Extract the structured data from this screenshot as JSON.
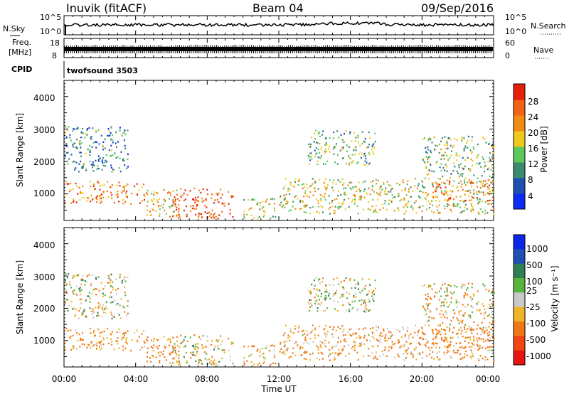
{
  "header": {
    "station": "Inuvik (fitACF)",
    "beam": "Beam 04",
    "date": "09/Sep/2016"
  },
  "strips": {
    "nsky_label": "N.Sky",
    "nsearch_label": "N.Search",
    "freq_label_1": "Freq.",
    "freq_label_2": "[MHz]",
    "nave_label": "Nave",
    "cpid_label": "CPID",
    "cpid_value": "twofsound 3503",
    "nsky_ticks": [
      "10^5",
      "10^0"
    ],
    "nsearch_ticks": [
      "10^5",
      "10^0"
    ],
    "freq_ticks": [
      "18",
      "8"
    ],
    "nave_ticks": [
      "60",
      "0"
    ]
  },
  "axes": {
    "xlabel": "Time UT",
    "x_ticks": [
      "00:00",
      "04:00",
      "08:00",
      "12:00",
      "16:00",
      "20:00",
      "00:00"
    ],
    "ylabel": "Slant Range [km]",
    "y_ticks": [
      "1000",
      "2000",
      "3000",
      "4000"
    ]
  },
  "colorbars": {
    "power": {
      "label": "Power [dB]",
      "ticks": [
        "4",
        "8",
        "12",
        "16",
        "20",
        "24",
        "28"
      ],
      "colors": [
        "#0a2cf0",
        "#1e50b4",
        "#3a8a6e",
        "#5cc85a",
        "#f0c81e",
        "#f08c14",
        "#f06414",
        "#e61e0a"
      ]
    },
    "velocity": {
      "label": "Velocity [m s⁻¹]",
      "ticks": [
        "1000",
        "500",
        "100",
        "25",
        "-25",
        "-100",
        "-500",
        "-1000"
      ],
      "colors": [
        "#0a28e6",
        "#1e50b4",
        "#2f8050",
        "#5ab43c",
        "#c8c8c8",
        "#f0b428",
        "#f07814",
        "#f04614",
        "#e61414"
      ]
    }
  },
  "chart_data": {
    "type": "heatmap",
    "title": "Inuvik (fitACF) Beam 04 09/Sep/2016",
    "xlabel": "Time UT",
    "ylabel": "Slant Range [km]",
    "xlim_hours": [
      0,
      24
    ],
    "ylim_km": [
      180,
      4500
    ],
    "power_scale_db": [
      0,
      30
    ],
    "velocity_scale_ms": [
      -1000,
      1000
    ],
    "echo_regions": [
      {
        "t": [
          0.0,
          4.6
        ],
        "r": [
          700,
          1400
        ],
        "power_db": 22,
        "velocity_ms": -150
      },
      {
        "t": [
          0.0,
          3.6
        ],
        "r": [
          1700,
          3100
        ],
        "power_db": 9,
        "velocity_ms": 0
      },
      {
        "t": [
          4.6,
          6.5
        ],
        "r": [
          300,
          1200
        ],
        "power_db": 18,
        "velocity_ms": -200
      },
      {
        "t": [
          6.0,
          9.4
        ],
        "r": [
          250,
          1200
        ],
        "power_db": 26,
        "velocity_ms": -20
      },
      {
        "t": [
          10.0,
          11.8
        ],
        "r": [
          250,
          900
        ],
        "power_db": 16,
        "velocity_ms": -80
      },
      {
        "t": [
          12.0,
          24.0
        ],
        "r": [
          400,
          1500
        ],
        "power_db": 16,
        "velocity_ms": -120
      },
      {
        "t": [
          13.6,
          17.4
        ],
        "r": [
          1900,
          3000
        ],
        "power_db": 12,
        "velocity_ms": 0
      },
      {
        "t": [
          20.0,
          24.0
        ],
        "r": [
          1500,
          2800
        ],
        "power_db": 13,
        "velocity_ms": -60
      },
      {
        "t": [
          20.5,
          24.0
        ],
        "r": [
          800,
          1400
        ],
        "power_db": 22,
        "velocity_ms": -300
      }
    ],
    "nsky_level": "~10^4",
    "freq_level_mhz": 10,
    "nave_level": 22
  }
}
